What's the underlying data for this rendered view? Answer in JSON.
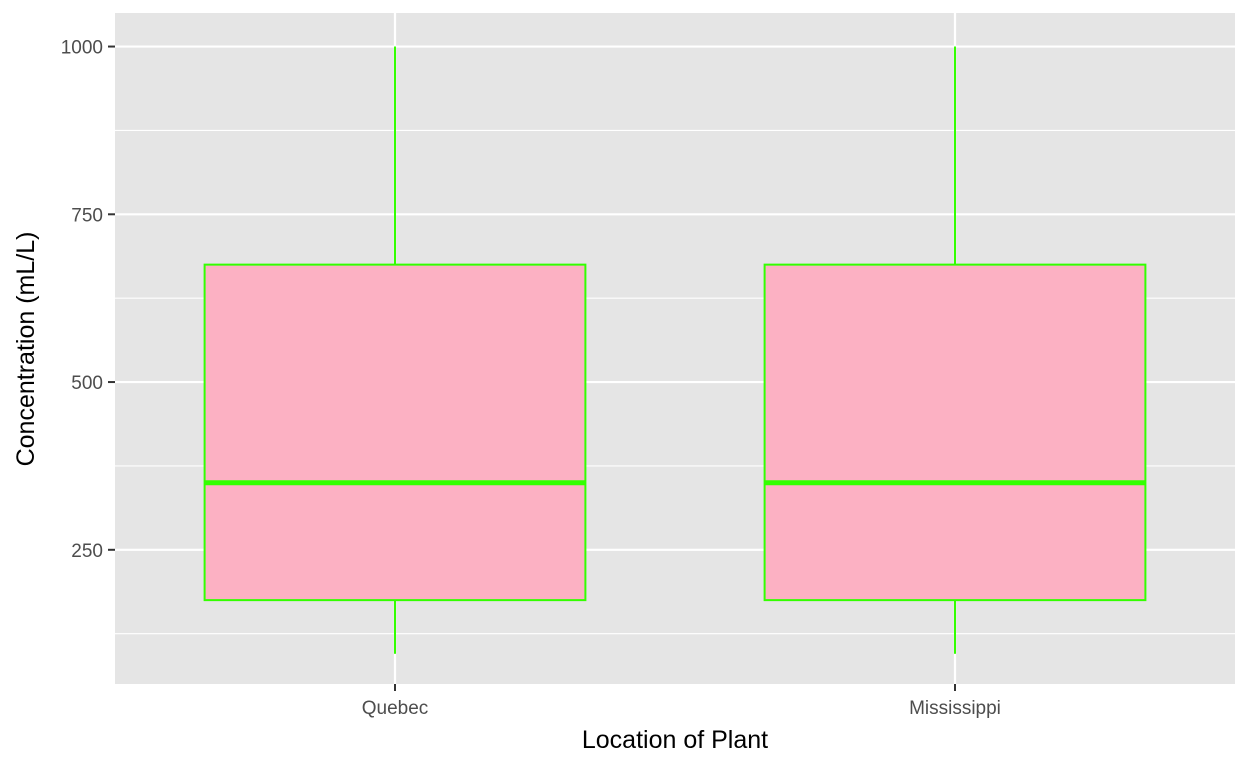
{
  "chart_data": {
    "type": "boxplot",
    "title": "",
    "xlabel": "Location of Plant",
    "ylabel": "Concentration (mL/L)",
    "ylim": [
      50,
      1050
    ],
    "y_ticks": [
      250,
      500,
      750,
      1000
    ],
    "y_tick_labels": [
      "250",
      "500",
      "750",
      "1000"
    ],
    "categories": [
      "Quebec",
      "Mississippi"
    ],
    "boxes": [
      {
        "category": "Quebec",
        "min": 95,
        "q1": 175,
        "median": 350,
        "q3": 675,
        "max": 1000
      },
      {
        "category": "Mississippi",
        "min": 95,
        "q1": 175,
        "median": 350,
        "q3": 675,
        "max": 1000
      }
    ],
    "grid": true,
    "colors": {
      "panel_background": "#e5e5e5",
      "grid": "#ffffff",
      "box_fill": "#fcb1c3",
      "box_outline": "#33ff00"
    }
  }
}
